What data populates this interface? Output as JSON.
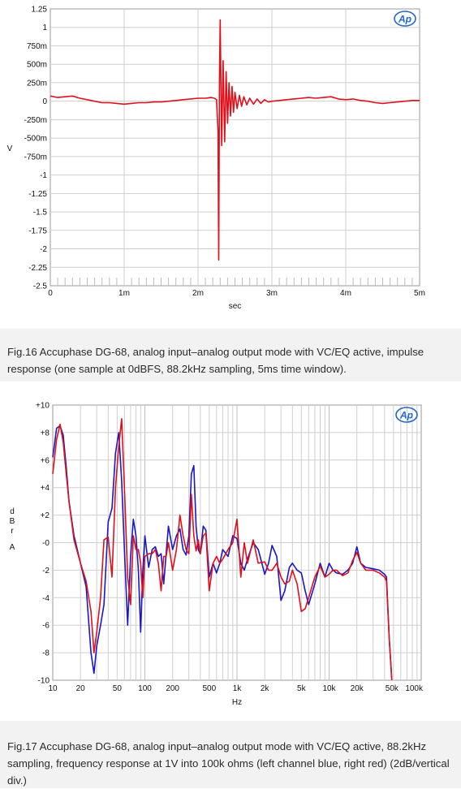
{
  "charts_meta": {
    "logo_text": "Ap",
    "colors": {
      "red": "#e0101a",
      "blue": "#1818c8",
      "grid": "#cfcfcf",
      "frame": "#9a9a9a",
      "logo": "#1f66c8"
    }
  },
  "chart_data": [
    {
      "type": "line",
      "xlabel": "sec",
      "ylabel": "V",
      "xlim": [
        0,
        5
      ],
      "ylim": [
        -2.5,
        1.25
      ],
      "x_tick_values": [
        0,
        1,
        2,
        3,
        4,
        5
      ],
      "x_tick_labels": [
        "0",
        "1m",
        "2m",
        "3m",
        "4m",
        "5m"
      ],
      "y_tick_values": [
        1.25,
        1,
        0.75,
        0.5,
        0.25,
        0,
        -0.25,
        -0.5,
        -0.75,
        -1,
        -1.25,
        -1.5,
        -1.75,
        -2,
        -2.25,
        -2.5
      ],
      "y_tick_labels": [
        "1.25",
        "1",
        "750m",
        "500m",
        "250m",
        "0",
        "-250m",
        "-500m",
        "-750m",
        "-1",
        "-1.25",
        "-1.5",
        "-1.75",
        "-2",
        "-2.25",
        "-2.5"
      ],
      "series": [
        {
          "color": "#e0101a",
          "x": [
            0,
            0.1,
            0.2,
            0.3,
            0.4,
            0.5,
            0.6,
            0.7,
            0.8,
            0.9,
            1.0,
            1.1,
            1.2,
            1.3,
            1.4,
            1.5,
            1.6,
            1.7,
            1.8,
            1.9,
            2.0,
            2.1,
            2.18,
            2.22,
            2.25,
            2.27,
            2.28,
            2.29,
            2.3,
            2.32,
            2.34,
            2.36,
            2.38,
            2.4,
            2.42,
            2.44,
            2.46,
            2.48,
            2.5,
            2.53,
            2.56,
            2.59,
            2.62,
            2.66,
            2.7,
            2.75,
            2.8,
            2.85,
            2.9,
            2.95,
            3.0,
            3.1,
            3.2,
            3.3,
            3.4,
            3.5,
            3.6,
            3.7,
            3.8,
            3.9,
            4.0,
            4.1,
            4.2,
            4.3,
            4.4,
            4.5,
            4.6,
            4.7,
            4.8,
            4.9,
            5.0
          ],
          "y": [
            0.07,
            0.05,
            0.06,
            0.07,
            0.04,
            0.02,
            0.0,
            -0.02,
            -0.02,
            -0.03,
            -0.04,
            -0.03,
            -0.02,
            -0.02,
            -0.01,
            -0.01,
            0.0,
            0.01,
            0.02,
            0.03,
            0.04,
            0.04,
            0.05,
            0.04,
            0.02,
            -0.4,
            -2.15,
            0.3,
            1.1,
            -0.6,
            0.55,
            -0.55,
            0.4,
            -0.3,
            0.25,
            -0.2,
            0.2,
            -0.15,
            0.12,
            -0.1,
            0.08,
            -0.07,
            0.06,
            -0.05,
            0.04,
            -0.04,
            0.03,
            -0.03,
            0.02,
            -0.01,
            0.0,
            0.01,
            0.02,
            0.03,
            0.04,
            0.05,
            0.04,
            0.05,
            0.06,
            0.03,
            0.02,
            0.03,
            0.01,
            0.0,
            -0.02,
            -0.03,
            -0.02,
            -0.01,
            0.0,
            0.01,
            0.01
          ]
        }
      ]
    },
    {
      "type": "line",
      "xlabel": "Hz",
      "ylabel": "dBr A",
      "xscale": "log",
      "xlim": [
        10,
        100000
      ],
      "ylim": [
        -10,
        10
      ],
      "x_tick_values": [
        10,
        20,
        50,
        100,
        200,
        500,
        1000,
        2000,
        5000,
        10000,
        20000,
        50000,
        100000
      ],
      "x_tick_labels": [
        "10",
        "20",
        "50",
        "100",
        "200",
        "500",
        "1k",
        "2k",
        "5k",
        "10k",
        "20k",
        "50k",
        "100k"
      ],
      "y_tick_values": [
        10,
        8,
        6,
        4,
        2,
        0,
        -2,
        -4,
        -6,
        -8,
        -10
      ],
      "y_tick_labels": [
        "+10",
        "+8",
        "+6",
        "+4",
        "+2",
        "-0",
        "-2",
        "-4",
        "-6",
        "-8",
        "-10"
      ],
      "series": [
        {
          "name": "left channel",
          "color": "#1818c8",
          "x": [
            10,
            11,
            12,
            13,
            14,
            15,
            17,
            20,
            23,
            26,
            28,
            30,
            33,
            36,
            40,
            44,
            48,
            52,
            56,
            60,
            65,
            70,
            75,
            80,
            85,
            90,
            95,
            100,
            110,
            120,
            130,
            140,
            150,
            160,
            170,
            180,
            200,
            220,
            240,
            260,
            280,
            300,
            320,
            340,
            360,
            380,
            400,
            430,
            460,
            500,
            550,
            600,
            650,
            700,
            800,
            900,
            1000,
            1100,
            1200,
            1300,
            1500,
            1700,
            2000,
            2200,
            2400,
            2700,
            3000,
            3300,
            3700,
            4000,
            4500,
            5000,
            5500,
            6000,
            7000,
            8000,
            9000,
            10000,
            11000,
            12000,
            14000,
            16000,
            18000,
            20000,
            22000,
            25000,
            30000,
            35000,
            40000,
            42000,
            45000,
            48000
          ],
          "y": [
            6.2,
            8.3,
            8.5,
            7.8,
            5.5,
            3.0,
            0.5,
            -1.5,
            -3.2,
            -8.0,
            -9.5,
            -7.5,
            -6.0,
            -4.5,
            1.5,
            2.5,
            6.5,
            8.0,
            4.5,
            -0.5,
            -6.0,
            -1.0,
            1.7,
            0.5,
            -2.0,
            -6.5,
            -2.0,
            0.5,
            -1.8,
            -0.5,
            -0.3,
            -1.0,
            -0.8,
            -3.0,
            -0.8,
            1.2,
            -0.5,
            0.5,
            1.0,
            -0.5,
            -0.9,
            0.5,
            5.0,
            5.6,
            1.2,
            -0.5,
            -0.8,
            1.2,
            0.9,
            -2.5,
            -1.5,
            -2.2,
            -1.5,
            -0.5,
            -1.0,
            0.5,
            0.3,
            -1.5,
            -2.0,
            -1.2,
            0.0,
            -0.5,
            -2.3,
            -1.5,
            -0.2,
            -1.0,
            -4.2,
            -3.5,
            -1.8,
            -1.5,
            -2.0,
            -2.2,
            -3.5,
            -4.5,
            -3.0,
            -1.5,
            -2.5,
            -1.5,
            -2.0,
            -2.2,
            -2.3,
            -2.0,
            -1.5,
            -0.3,
            -1.5,
            -1.8,
            -1.9,
            -2.0,
            -2.3,
            -2.5,
            -7.0,
            -10.0
          ]
        },
        {
          "name": "right channel",
          "color": "#e0101a",
          "x": [
            10,
            11,
            12,
            13,
            14,
            15,
            17,
            20,
            23,
            26,
            28,
            30,
            33,
            36,
            40,
            44,
            48,
            52,
            56,
            60,
            65,
            70,
            75,
            80,
            85,
            90,
            95,
            100,
            110,
            120,
            130,
            140,
            150,
            160,
            170,
            180,
            200,
            220,
            240,
            260,
            280,
            300,
            320,
            340,
            360,
            380,
            400,
            430,
            460,
            500,
            550,
            600,
            650,
            700,
            800,
            900,
            1000,
            1100,
            1200,
            1300,
            1500,
            1700,
            2000,
            2200,
            2400,
            2700,
            3000,
            3300,
            3700,
            4000,
            4500,
            5000,
            5500,
            6000,
            7000,
            8000,
            9000,
            10000,
            11000,
            12000,
            14000,
            16000,
            18000,
            20000,
            22000,
            25000,
            30000,
            35000,
            40000,
            42000,
            45000,
            48000
          ],
          "y": [
            5.0,
            7.5,
            8.6,
            7.3,
            5.0,
            3.0,
            0.2,
            -1.5,
            -2.8,
            -5.0,
            -8.0,
            -6.5,
            -4.0,
            0.2,
            0.4,
            -2.5,
            4.0,
            7.0,
            9.0,
            4.0,
            -2.5,
            -4.5,
            0.5,
            -0.5,
            -0.5,
            -1.5,
            -4.0,
            -1.0,
            -0.8,
            -0.8,
            -0.5,
            -1.5,
            -3.5,
            -1.0,
            -1.0,
            0.0,
            -2.0,
            -0.5,
            2.0,
            0.5,
            -0.5,
            -0.8,
            3.5,
            0.5,
            -0.6,
            0.2,
            -0.8,
            0.5,
            0.7,
            -3.5,
            -1.5,
            -1.0,
            -1.5,
            -1.2,
            -0.5,
            0.0,
            1.7,
            -2.5,
            0.0,
            -1.5,
            0.2,
            -1.5,
            -1.4,
            -2.0,
            -2.0,
            -1.5,
            -2.5,
            -3.0,
            -2.8,
            -2.0,
            -3.0,
            -5.0,
            -4.8,
            -4.0,
            -2.5,
            -1.7,
            -2.5,
            -2.3,
            -2.0,
            -2.0,
            -2.4,
            -2.2,
            -1.3,
            -0.7,
            -1.5,
            -2.0,
            -2.0,
            -2.2,
            -2.5,
            -2.8,
            -7.0,
            -10.0
          ]
        }
      ]
    }
  ],
  "captions": {
    "fig16": "Fig.16 Accuphase DG-68, analog input–analog output mode with VC/EQ active, impulse response (one sample at 0dBFS, 88.2kHz sampling, 5ms time window).",
    "fig17": "Fig.17 Accuphase DG-68, analog input–analog output mode with VC/EQ active, 88.2kHz sampling, frequency response at 1V into 100k ohms (left channel blue, right red) (2dB/vertical div.)"
  }
}
